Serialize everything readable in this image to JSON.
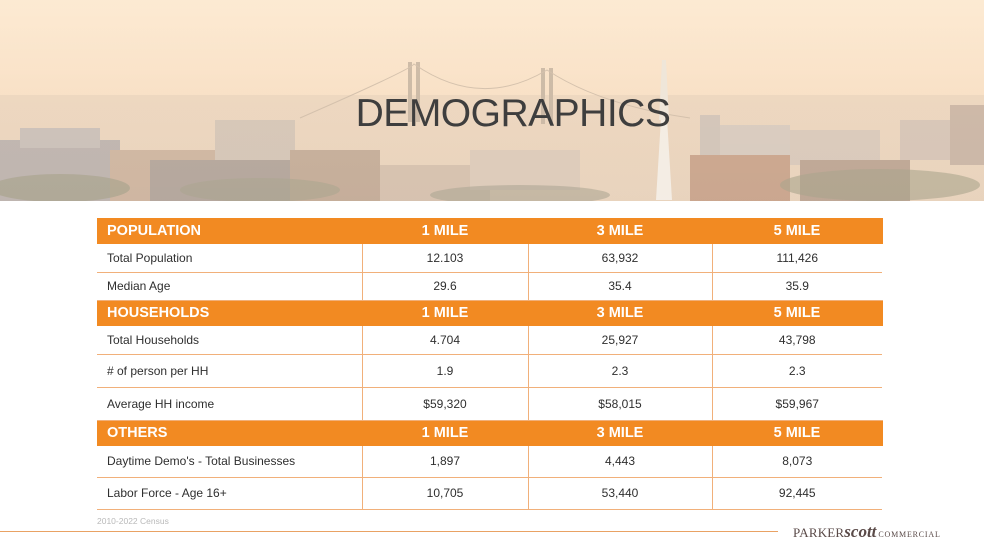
{
  "hero": {
    "title": "DEMOGRAPHICS"
  },
  "table": {
    "sections": [
      {
        "heading": "POPULATION",
        "columns": [
          "1 MILE",
          "3 MILE",
          "5 MILE"
        ],
        "rows": [
          {
            "label": "Total Population",
            "values": [
              "12.103",
              "63,932",
              "111,426"
            ]
          },
          {
            "label": "Median Age",
            "values": [
              "29.6",
              "35.4",
              "35.9"
            ]
          }
        ]
      },
      {
        "heading": "HOUSEHOLDS",
        "columns": [
          "1 MILE",
          "3 MILE",
          "5 MILE"
        ],
        "rows": [
          {
            "label": "Total Households",
            "values": [
              "4.704",
              "25,927",
              "43,798"
            ]
          },
          {
            "label": "# of person per HH",
            "values": [
              "1.9",
              "2.3",
              "2.3"
            ]
          },
          {
            "label": "Average HH income",
            "values": [
              "$59,320",
              "$58,015",
              "$59,967"
            ]
          }
        ]
      },
      {
        "heading": "OTHERS",
        "columns": [
          "1 MILE",
          "3 MILE",
          "5 MILE"
        ],
        "rows": [
          {
            "label": "Daytime Demo's - Total Businesses",
            "values": [
              "1,897",
              "4,443",
              "8,073"
            ]
          },
          {
            "label": "Labor Force - Age 16+",
            "values": [
              "10,705",
              "53,440",
              "92,445"
            ]
          }
        ]
      }
    ]
  },
  "footer": {
    "source_note": "2010-2022 Census",
    "logo": {
      "part1": "PARKER",
      "part2": "scott",
      "part3": "COMMERCIAL"
    }
  },
  "colors": {
    "accent_orange": "#f28a22",
    "divider": "#f1b07a",
    "title_text": "#3e3e3e"
  }
}
